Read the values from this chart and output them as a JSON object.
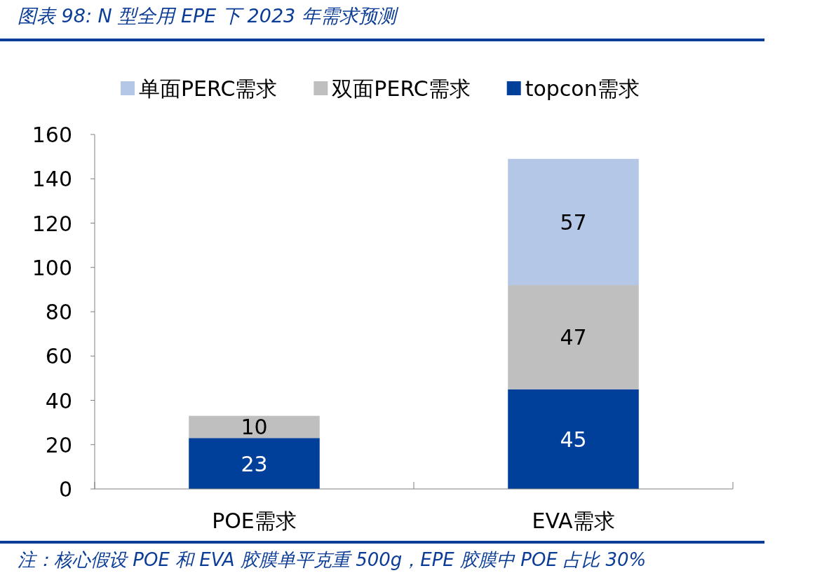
{
  "chart_data": {
    "type": "bar",
    "title": "图表 98:  N 型全用 EPE 下 2023 年需求预测",
    "annotations": [
      "注：核心假设 POE 和 EVA 胶膜单平克重 500g，EPE 胶膜中 POE 占比 30%"
    ],
    "categories": [
      "POE需求",
      "EVA需求"
    ],
    "series": [
      {
        "name": "topcon需求",
        "color": "#003f9a",
        "values": [
          23,
          45
        ]
      },
      {
        "name": "双面PERC需求",
        "color": "#bfbfbf",
        "values": [
          10,
          47
        ]
      },
      {
        "name": "单面PERC需求",
        "color": "#b4c7e7",
        "values": [
          null,
          57
        ]
      }
    ],
    "stacked": true,
    "ylim": [
      0,
      160
    ],
    "yticks": [
      0,
      20,
      40,
      60,
      80,
      100,
      120,
      140,
      160
    ],
    "data_labels": true,
    "legend": "top",
    "grid": false
  }
}
